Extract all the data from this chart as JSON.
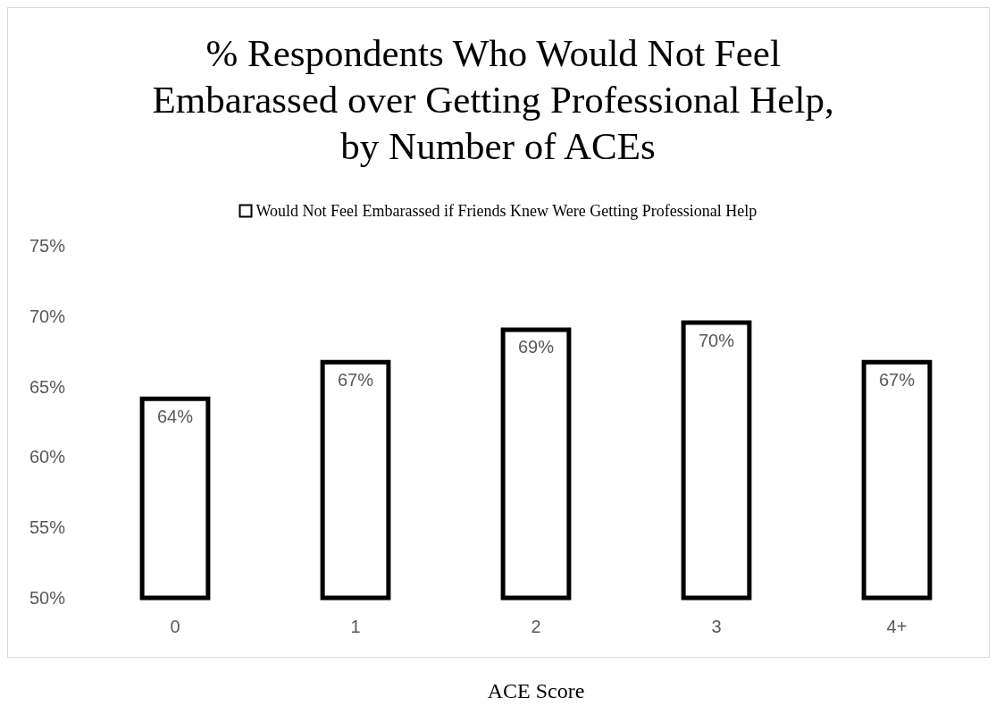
{
  "chart_data": {
    "type": "bar",
    "title": "% Respondents Who Would Not Feel Embarassed over Getting Professional Help, by Number of ACEs",
    "xlabel": "ACE Score",
    "categories": [
      "0",
      "1",
      "2",
      "3",
      "4+"
    ],
    "series": [
      {
        "name": "Would Not Feel Embarassed if Friends Knew Were Getting Professional Help",
        "color": "#000000",
        "values": [
          64.3,
          66.9,
          69.2,
          69.7,
          66.9
        ],
        "value_labels": [
          "64%",
          "67%",
          "69%",
          "70%",
          "67%"
        ]
      }
    ],
    "ylim": [
      50,
      75
    ],
    "yticks": [
      {
        "value": 50,
        "label": "50%"
      },
      {
        "value": 55,
        "label": "55%"
      },
      {
        "value": 60,
        "label": "60%"
      },
      {
        "value": 65,
        "label": "65%"
      },
      {
        "value": 70,
        "label": "70%"
      },
      {
        "value": 75,
        "label": "75%"
      }
    ],
    "grid": false,
    "legend": "top"
  }
}
